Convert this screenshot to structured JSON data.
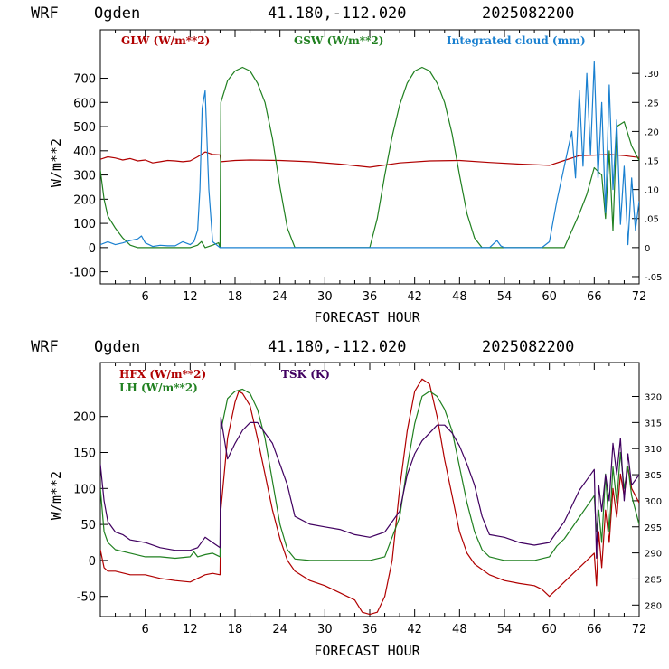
{
  "header": {
    "model": "WRF",
    "location": "Ogden",
    "coords": "41.180,-112.020",
    "init": "2025082200"
  },
  "chart_data": [
    {
      "type": "line",
      "title": "",
      "xlabel": "FORECAST HOUR",
      "ylabel": "W/m**2",
      "xlim": [
        0,
        72
      ],
      "ylim": [
        -150,
        900
      ],
      "x_ticks": [
        "6",
        "12",
        "18",
        "24",
        "30",
        "36",
        "42",
        "48",
        "54",
        "60",
        "66",
        "72"
      ],
      "y_ticks": [
        "-100",
        "0",
        "100",
        "200",
        "300",
        "400",
        "500",
        "600",
        "700"
      ],
      "y2lim": [
        -0.0625,
        0.375
      ],
      "y2_ticks": [
        "-.05",
        "0",
        ".05",
        ".10",
        ".15",
        ".20",
        ".25",
        ".30"
      ],
      "legend_placement": "top",
      "series": [
        {
          "name": "GLW (W/m**2)",
          "color": "#b00000",
          "axis": "left",
          "x": [
            0,
            1,
            2,
            3,
            4,
            5,
            6,
            7,
            8,
            9,
            10,
            11,
            12,
            13,
            14,
            15,
            16,
            16.1,
            18,
            20,
            24,
            28,
            32,
            36,
            40,
            44,
            48,
            52,
            56,
            60,
            62,
            64,
            66,
            68,
            70,
            72
          ],
          "y": [
            365,
            375,
            370,
            362,
            368,
            358,
            362,
            350,
            355,
            360,
            358,
            355,
            358,
            375,
            395,
            385,
            383,
            355,
            360,
            362,
            360,
            355,
            345,
            332,
            350,
            358,
            360,
            352,
            345,
            340,
            360,
            380,
            382,
            385,
            380,
            372
          ]
        },
        {
          "name": "GSW (W/m**2)",
          "color": "#208020",
          "axis": "left",
          "x": [
            0,
            0.5,
            1,
            2,
            3,
            4,
            5,
            6,
            12,
            13,
            13.5,
            14,
            15,
            15.8,
            16,
            16.1,
            17,
            18,
            19,
            20,
            21,
            22,
            23,
            24,
            25,
            26,
            36,
            37,
            38,
            39,
            40,
            41,
            42,
            43,
            44,
            45,
            46,
            47,
            48,
            49,
            50,
            51,
            62,
            63,
            64,
            65,
            66,
            67,
            67.5,
            68,
            68.5,
            69,
            70,
            71,
            72
          ],
          "y": [
            320,
            200,
            130,
            80,
            40,
            10,
            0,
            0,
            0,
            10,
            25,
            0,
            10,
            20,
            0,
            600,
            690,
            730,
            745,
            730,
            680,
            600,
            450,
            250,
            80,
            0,
            0,
            120,
            300,
            460,
            590,
            680,
            730,
            745,
            730,
            680,
            600,
            470,
            300,
            140,
            40,
            0,
            0,
            70,
            140,
            220,
            330,
            300,
            120,
            400,
            70,
            500,
            520,
            420,
            360
          ]
        },
        {
          "name": "Integrated cloud (mm)",
          "color": "#1a80d0",
          "axis": "right",
          "x": [
            0,
            1,
            2,
            3,
            4,
            5,
            5.5,
            6,
            6.5,
            7,
            8,
            9,
            10,
            11,
            12,
            12.5,
            13,
            13.3,
            13.6,
            14,
            14.5,
            15,
            16,
            20,
            30,
            40,
            50,
            52,
            53,
            53.5,
            54,
            55,
            59,
            60,
            61,
            62,
            63,
            63.5,
            64,
            64.5,
            65,
            65.5,
            66,
            66.5,
            67,
            67.5,
            68,
            68.5,
            69,
            69.5,
            70,
            70.5,
            71,
            71.5,
            72
          ],
          "y": [
            0.005,
            0.01,
            0.005,
            0.008,
            0.012,
            0.015,
            0.02,
            0.008,
            0.005,
            0.002,
            0.004,
            0.003,
            0.003,
            0.01,
            0.005,
            0.01,
            0.03,
            0.1,
            0.24,
            0.27,
            0.1,
            0.01,
            0.0,
            0.0,
            0.0,
            0.0,
            0.0,
            0.0,
            0.012,
            0.003,
            0.0,
            0.0,
            0.0,
            0.01,
            0.08,
            0.14,
            0.2,
            0.12,
            0.27,
            0.14,
            0.3,
            0.16,
            0.32,
            0.12,
            0.25,
            0.06,
            0.28,
            0.1,
            0.22,
            0.04,
            0.14,
            0.005,
            0.12,
            0.03,
            0.08
          ]
        }
      ]
    },
    {
      "type": "line",
      "title": "",
      "xlabel": "FORECAST HOUR",
      "ylabel": "W/m**2",
      "xlim": [
        0,
        72
      ],
      "ylim": [
        -78,
        275
      ],
      "x_ticks": [
        "6",
        "12",
        "18",
        "24",
        "30",
        "36",
        "42",
        "48",
        "54",
        "60",
        "66",
        "72"
      ],
      "y_ticks": [
        "-50",
        "0",
        "50",
        "100",
        "150",
        "200"
      ],
      "y2lim": [
        277.8,
        326.5
      ],
      "y2_ticks": [
        "280",
        "285",
        "290",
        "295",
        "300",
        "305",
        "310",
        "315",
        "320"
      ],
      "legend_placement": "top-left",
      "series": [
        {
          "name": "HFX (W/m**2)",
          "color": "#b00000",
          "axis": "left",
          "x": [
            0,
            0.5,
            1,
            2,
            4,
            6,
            8,
            10,
            12,
            13,
            14,
            15,
            16,
            16.1,
            17,
            18,
            18.5,
            19,
            20,
            21,
            22,
            23,
            24,
            25,
            26,
            28,
            30,
            32,
            34,
            35,
            36,
            37,
            38,
            39,
            40,
            41,
            42,
            43,
            44,
            45,
            46,
            47,
            48,
            49,
            50,
            52,
            54,
            56,
            58,
            59,
            60,
            60.5,
            61,
            62,
            63,
            64,
            65,
            66,
            66.3,
            66.6,
            67,
            67.5,
            68,
            68.5,
            69,
            69.5,
            70,
            70.5,
            71,
            72
          ],
          "y": [
            15,
            -10,
            -15,
            -15,
            -20,
            -20,
            -25,
            -28,
            -30,
            -25,
            -20,
            -18,
            -20,
            70,
            170,
            220,
            235,
            232,
            215,
            170,
            120,
            70,
            30,
            0,
            -15,
            -28,
            -35,
            -45,
            -55,
            -72,
            -75,
            -72,
            -50,
            0,
            100,
            180,
            235,
            252,
            245,
            200,
            140,
            90,
            40,
            10,
            -5,
            -20,
            -28,
            -32,
            -35,
            -40,
            -50,
            -45,
            -40,
            -30,
            -20,
            -10,
            0,
            10,
            -35,
            40,
            -10,
            70,
            25,
            100,
            60,
            120,
            90,
            130,
            100,
            80
          ]
        },
        {
          "name": "LH (W/m**2)",
          "color": "#208020",
          "axis": "left",
          "x": [
            0,
            0.5,
            1,
            2,
            4,
            6,
            8,
            10,
            12,
            12.5,
            13,
            14,
            15,
            16,
            16.1,
            17,
            18,
            19,
            20,
            21,
            22,
            23,
            24,
            25,
            26,
            28,
            36,
            38,
            40,
            41,
            42,
            43,
            44,
            45,
            46,
            47,
            48,
            49,
            50,
            51,
            52,
            54,
            58,
            60,
            61,
            62,
            63,
            64,
            65,
            66,
            66.3,
            66.6,
            67,
            67.5,
            68,
            68.5,
            69,
            69.5,
            70,
            70.5,
            71,
            72
          ],
          "y": [
            100,
            40,
            25,
            15,
            10,
            5,
            5,
            3,
            5,
            12,
            5,
            8,
            10,
            5,
            180,
            225,
            235,
            238,
            232,
            210,
            170,
            110,
            50,
            15,
            2,
            0,
            0,
            5,
            60,
            130,
            190,
            228,
            235,
            228,
            210,
            180,
            130,
            80,
            40,
            15,
            5,
            0,
            0,
            5,
            20,
            30,
            45,
            60,
            75,
            90,
            40,
            70,
            25,
            120,
            40,
            130,
            80,
            150,
            100,
            130,
            90,
            50
          ]
        },
        {
          "name": "TSK (K)",
          "color": "#400060",
          "axis": "right",
          "x": [
            0,
            0.5,
            1,
            2,
            3,
            4,
            6,
            8,
            10,
            12,
            13,
            14,
            15,
            16,
            16.1,
            17,
            18,
            19,
            20,
            21,
            22,
            23,
            24,
            25,
            26,
            28,
            30,
            32,
            34,
            36,
            38,
            40,
            41,
            42,
            43,
            44,
            45,
            46,
            47,
            48,
            49,
            50,
            51,
            52,
            54,
            56,
            58,
            60,
            61,
            62,
            63,
            64,
            65,
            66,
            66.3,
            66.6,
            67,
            67.5,
            68,
            68.5,
            69,
            69.5,
            70,
            70.5,
            71,
            72
          ],
          "y": [
            307,
            300,
            296,
            294,
            293.5,
            292.5,
            292,
            291,
            290.5,
            290.5,
            291,
            293,
            292,
            291,
            316,
            308,
            311,
            313.5,
            315,
            315,
            313,
            311,
            307,
            303,
            297,
            295.5,
            295,
            294.5,
            293.5,
            293,
            294,
            298,
            305,
            309,
            311.5,
            313,
            314.5,
            314.5,
            313,
            310.5,
            307,
            303,
            297,
            293.5,
            293,
            292,
            291.5,
            292,
            294,
            296,
            299,
            302,
            304,
            306,
            289,
            303,
            298,
            305,
            300,
            311,
            305,
            312,
            300,
            309,
            303,
            305
          ]
        }
      ]
    }
  ]
}
